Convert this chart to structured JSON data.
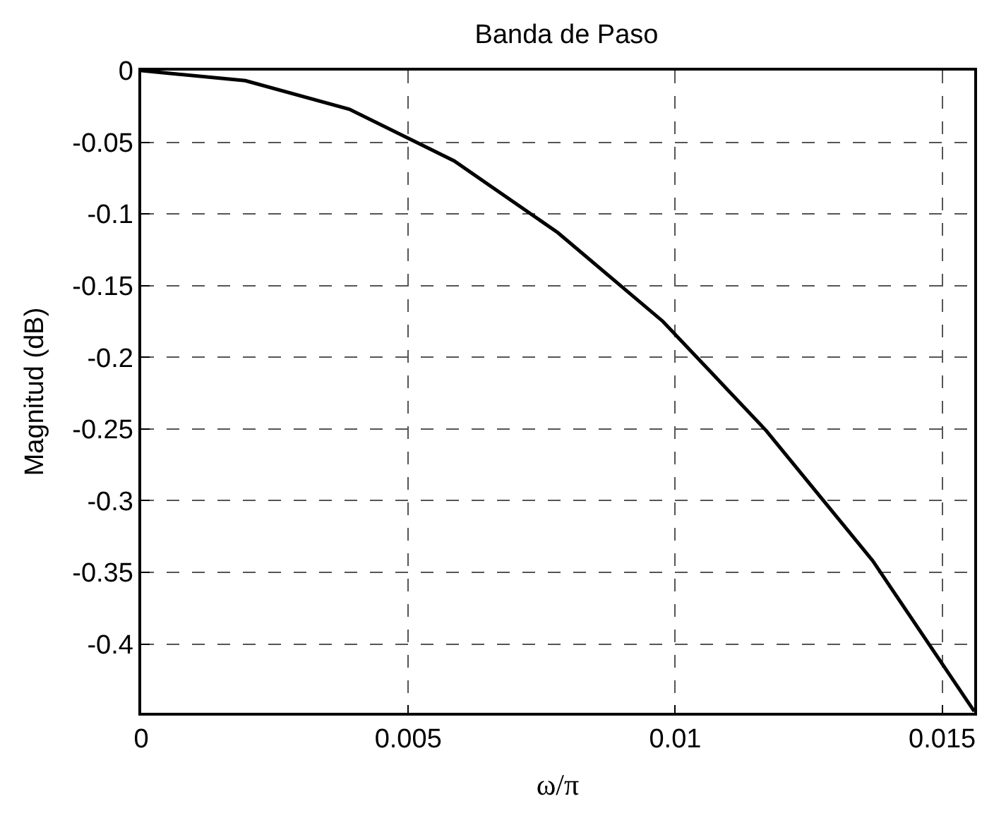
{
  "chart_data": {
    "type": "line",
    "title": "Banda de Paso",
    "xlabel": "ω/π",
    "ylabel": "Magnitud (dB)",
    "x": [
      0,
      0.00195,
      0.0039,
      0.00586,
      0.0078,
      0.00977,
      0.0117,
      0.0137,
      0.0156
    ],
    "series": [
      {
        "color": "#000000",
        "values": [
          0,
          -0.007,
          -0.027,
          -0.063,
          -0.113,
          -0.175,
          -0.251,
          -0.342,
          -0.447
        ]
      }
    ],
    "xlim": [
      0,
      0.0156
    ],
    "ylim": [
      -0.448,
      0
    ],
    "xticks": [
      0,
      0.005,
      0.01,
      0.015
    ],
    "yticks": [
      0,
      -0.05,
      -0.1,
      -0.15,
      -0.2,
      -0.25,
      -0.3,
      -0.35,
      -0.4
    ],
    "grid": true,
    "line_style": "solid",
    "marker": "none"
  }
}
